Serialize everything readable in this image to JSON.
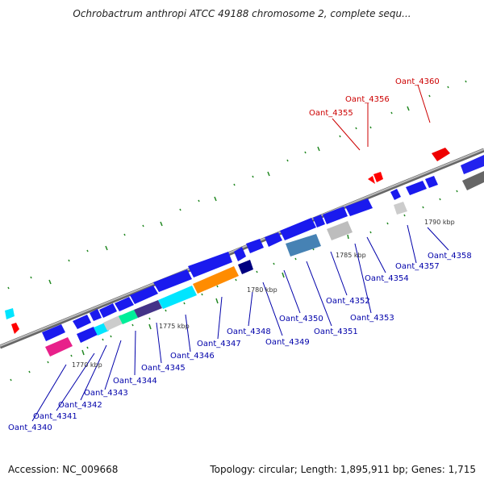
{
  "title": "Ochrobactrum anthropi ATCC 49188 chromosome 2, complete sequ...",
  "footer": {
    "accession": "Accession: NC_009668",
    "summary": "Topology: circular; Length: 1,895,911 bp; Genes: 1,715"
  },
  "colors": {
    "forward_label": "#cc0000",
    "reverse_label": "#0000aa",
    "backbone": "#888888",
    "tick": "#228822"
  },
  "scale_labels": [
    "1770 kbp",
    "1775 kbp",
    "1780 kbp",
    "1785 kbp",
    "1790 kbp"
  ],
  "forward_labels": [
    "Oant_4355",
    "Oant_4356",
    "Oant_4360"
  ],
  "reverse_labels": [
    "Oant_4340",
    "Oant_4341",
    "Oant_4342",
    "Oant_4343",
    "Oant_4344",
    "Oant_4345",
    "Oant_4346",
    "Oant_4347",
    "Oant_4348",
    "Oant_4349",
    "Oant_4350",
    "Oant_4351",
    "Oant_4352",
    "Oant_4353",
    "Oant_4354",
    "Oant_4357",
    "Oant_4358"
  ]
}
